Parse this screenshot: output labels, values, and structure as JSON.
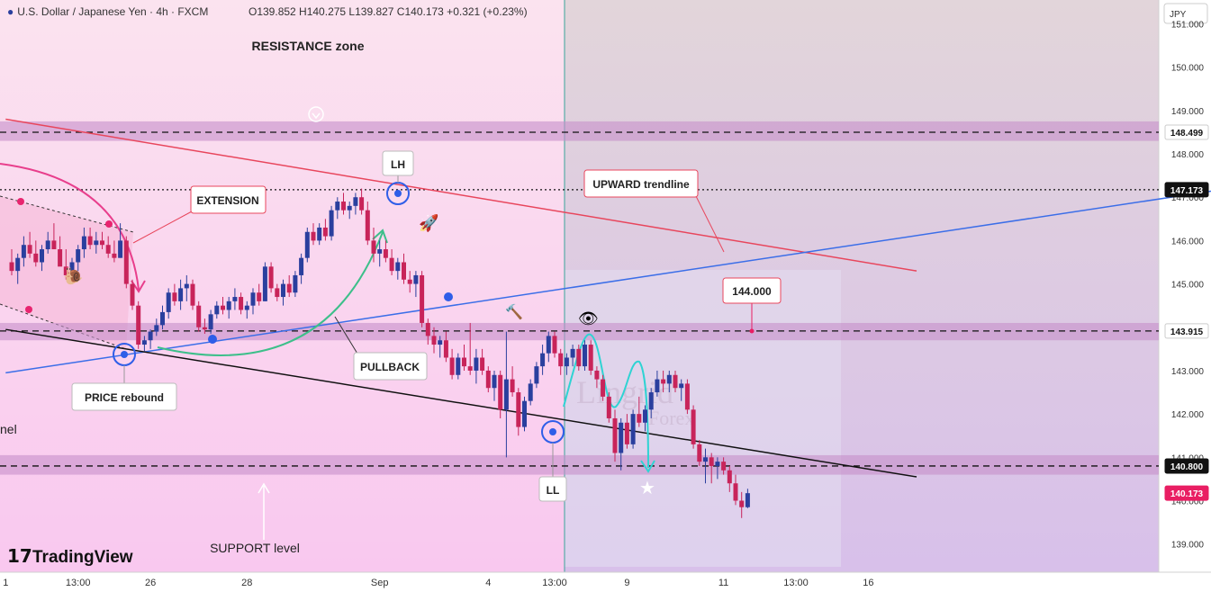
{
  "header": {
    "symbol": "U.S. Dollar / Japanese Yen · 4h · FXCM",
    "ohlc": "O139.852 H140.275 L139.827 C140.173 +0.321 (+0.23%)",
    "currency": "JPY"
  },
  "branding": {
    "logo_text": "TradingView",
    "watermark_big": "Lingrid",
    "watermark_small": "Forex"
  },
  "colors": {
    "bull": "#2a3f9e",
    "bear": "#c8245a",
    "resistance_line": "#e8465c",
    "upward_line": "#3b6ee8",
    "support_line": "#111111",
    "zone": "#c68fc9",
    "forecast_bg": "#d8c9e8",
    "current_price": "#e91e63"
  },
  "chart_data": {
    "type": "candlestick",
    "symbol": "USDJPY",
    "timeframe": "4h",
    "y_axis": {
      "range": [
        138.35,
        151.55
      ],
      "ticks": [
        "139.000",
        "140.000",
        "141.000",
        "142.000",
        "143.000",
        "144.000",
        "145.000",
        "146.000",
        "147.000",
        "148.000",
        "149.000",
        "150.000",
        "151.000"
      ],
      "price_labels": [
        {
          "label": "148.499",
          "value": 148.499,
          "style": "grey"
        },
        {
          "label": "147.173",
          "value": 147.173,
          "style": "dark"
        },
        {
          "label": "143.915",
          "value": 143.915,
          "style": "grey"
        },
        {
          "label": "140.800",
          "value": 140.8,
          "style": "dark"
        },
        {
          "label": "140.173",
          "value": 140.173,
          "style": "red"
        }
      ]
    },
    "x_axis": {
      "ticks": [
        {
          "label": "1",
          "bar": -1
        },
        {
          "label": "13:00",
          "bar": 11
        },
        {
          "label": "26",
          "bar": 23
        },
        {
          "label": "28",
          "bar": 39
        },
        {
          "label": "Sep",
          "bar": 61
        },
        {
          "label": "4",
          "bar": 79
        },
        {
          "label": "13:00",
          "bar": 90
        },
        {
          "label": "9",
          "bar": 102
        },
        {
          "label": "11",
          "bar": 118
        },
        {
          "label": "13:00",
          "bar": 130
        },
        {
          "label": "16",
          "bar": 142
        }
      ]
    },
    "levels": [
      {
        "value": 148.499,
        "style": "dashed"
      },
      {
        "value": 147.173,
        "style": "dotted"
      },
      {
        "value": 143.915,
        "style": "dashed"
      },
      {
        "value": 140.8,
        "style": "dashed"
      }
    ],
    "zones": [
      {
        "from": 148.3,
        "to": 148.75
      },
      {
        "from": 143.7,
        "to": 144.1
      },
      {
        "from": 140.6,
        "to": 141.05
      }
    ],
    "trendlines": [
      {
        "name": "resistance",
        "from": {
          "bar": -1,
          "price": 148.8
        },
        "to": {
          "bar": 150,
          "price": 145.3
        }
      },
      {
        "name": "upward",
        "from": {
          "bar": -1,
          "price": 142.95
        },
        "to": {
          "bar": 216,
          "price": 147.5
        }
      },
      {
        "name": "support",
        "from": {
          "bar": -1,
          "price": 143.95
        },
        "to": {
          "bar": 150,
          "price": 140.55
        }
      }
    ],
    "candles": [
      [
        145.5,
        145.8,
        145.2,
        145.3
      ],
      [
        145.3,
        145.7,
        145.0,
        145.6
      ],
      [
        145.6,
        146.1,
        145.4,
        145.9
      ],
      [
        145.9,
        146.2,
        145.6,
        145.7
      ],
      [
        145.7,
        146.0,
        145.4,
        145.5
      ],
      [
        145.5,
        145.9,
        145.3,
        145.8
      ],
      [
        145.8,
        146.2,
        145.7,
        146.0
      ],
      [
        146.0,
        146.4,
        145.9,
        145.8
      ],
      [
        145.8,
        146.1,
        145.5,
        145.4
      ],
      [
        145.4,
        145.8,
        145.1,
        145.2
      ],
      [
        145.2,
        145.6,
        145.0,
        145.5
      ],
      [
        145.5,
        145.9,
        145.3,
        145.8
      ],
      [
        145.8,
        146.3,
        145.6,
        146.1
      ],
      [
        146.1,
        146.3,
        145.8,
        145.9
      ],
      [
        145.9,
        146.2,
        145.7,
        146.0
      ],
      [
        146.0,
        146.2,
        145.8,
        145.9
      ],
      [
        145.9,
        146.1,
        145.6,
        145.7
      ],
      [
        145.7,
        146.0,
        145.5,
        145.6
      ],
      [
        145.6,
        146.4,
        145.6,
        146.0
      ],
      [
        146.0,
        146.1,
        144.9,
        145.0
      ],
      [
        145.0,
        145.1,
        144.4,
        144.5
      ],
      [
        144.5,
        144.6,
        143.5,
        143.6
      ],
      [
        143.6,
        143.8,
        143.45,
        143.7
      ],
      [
        143.7,
        143.95,
        143.5,
        143.9
      ],
      [
        143.9,
        144.2,
        143.8,
        144.05
      ],
      [
        144.05,
        144.5,
        143.95,
        144.35
      ],
      [
        144.35,
        144.9,
        144.2,
        144.8
      ],
      [
        144.8,
        145.0,
        144.5,
        144.6
      ],
      [
        144.6,
        145.1,
        144.4,
        144.9
      ],
      [
        144.9,
        145.2,
        144.6,
        145.0
      ],
      [
        145.0,
        145.1,
        144.4,
        144.5
      ],
      [
        144.5,
        144.6,
        143.9,
        144.0
      ],
      [
        144.0,
        144.2,
        143.85,
        143.95
      ],
      [
        143.95,
        144.4,
        143.85,
        144.3
      ],
      [
        144.3,
        144.6,
        144.2,
        144.5
      ],
      [
        144.5,
        144.7,
        144.3,
        144.4
      ],
      [
        144.4,
        144.7,
        144.2,
        144.6
      ],
      [
        144.6,
        144.9,
        144.4,
        144.7
      ],
      [
        144.7,
        144.8,
        144.3,
        144.4
      ],
      [
        144.4,
        144.6,
        144.2,
        144.5
      ],
      [
        144.5,
        144.9,
        144.3,
        144.8
      ],
      [
        144.8,
        145.0,
        144.5,
        144.6
      ],
      [
        144.6,
        145.5,
        144.6,
        145.4
      ],
      [
        145.4,
        145.5,
        144.8,
        144.9
      ],
      [
        144.9,
        145.0,
        144.6,
        144.7
      ],
      [
        144.7,
        145.1,
        144.5,
        145.0
      ],
      [
        145.0,
        145.2,
        144.7,
        144.8
      ],
      [
        144.8,
        145.3,
        144.7,
        145.2
      ],
      [
        145.2,
        145.7,
        145.0,
        145.6
      ],
      [
        145.6,
        146.3,
        145.5,
        146.2
      ],
      [
        146.2,
        146.4,
        145.9,
        146.0
      ],
      [
        146.0,
        146.4,
        145.9,
        146.3
      ],
      [
        146.3,
        146.5,
        146.0,
        146.1
      ],
      [
        146.1,
        146.8,
        146.0,
        146.7
      ],
      [
        146.7,
        147.0,
        146.5,
        146.9
      ],
      [
        146.9,
        147.1,
        146.6,
        146.7
      ],
      [
        146.7,
        146.9,
        146.5,
        146.8
      ],
      [
        146.8,
        147.1,
        146.6,
        147.0
      ],
      [
        147.0,
        147.2,
        146.6,
        146.7
      ],
      [
        146.7,
        146.9,
        145.9,
        146.0
      ],
      [
        146.0,
        146.3,
        145.5,
        145.7
      ],
      [
        145.7,
        146.0,
        145.4,
        145.8
      ],
      [
        145.8,
        146.0,
        145.5,
        145.6
      ],
      [
        145.6,
        145.8,
        145.2,
        145.3
      ],
      [
        145.3,
        145.6,
        145.1,
        145.5
      ],
      [
        145.5,
        145.7,
        145.0,
        145.1
      ],
      [
        145.1,
        145.3,
        144.8,
        145.0
      ],
      [
        145.0,
        145.3,
        144.7,
        145.2
      ],
      [
        145.2,
        145.3,
        144.0,
        144.1
      ],
      [
        144.1,
        144.2,
        143.6,
        143.8
      ],
      [
        143.8,
        144.0,
        143.4,
        143.6
      ],
      [
        143.6,
        143.8,
        143.3,
        143.7
      ],
      [
        143.7,
        143.9,
        143.2,
        143.3
      ],
      [
        143.3,
        143.5,
        142.8,
        142.9
      ],
      [
        142.9,
        143.4,
        142.8,
        143.3
      ],
      [
        143.3,
        143.6,
        143.0,
        143.1
      ],
      [
        143.1,
        144.1,
        142.9,
        143.0
      ],
      [
        143.0,
        143.5,
        142.7,
        143.3
      ],
      [
        143.3,
        143.5,
        142.9,
        143.0
      ],
      [
        143.0,
        143.1,
        142.5,
        142.6
      ],
      [
        142.6,
        143.0,
        142.3,
        142.9
      ],
      [
        142.9,
        143.0,
        141.9,
        142.1
      ],
      [
        142.1,
        143.9,
        141.0,
        142.8
      ],
      [
        142.8,
        143.1,
        142.4,
        142.5
      ],
      [
        142.5,
        142.6,
        141.5,
        141.7
      ],
      [
        141.7,
        142.4,
        141.6,
        142.3
      ],
      [
        142.3,
        142.8,
        142.2,
        142.7
      ],
      [
        142.7,
        143.2,
        142.6,
        143.1
      ],
      [
        143.1,
        143.6,
        142.9,
        143.4
      ],
      [
        143.4,
        143.9,
        143.2,
        143.8
      ],
      [
        143.8,
        143.9,
        143.3,
        143.4
      ],
      [
        143.4,
        143.5,
        142.9,
        143.1
      ],
      [
        143.1,
        143.4,
        142.9,
        143.3
      ],
      [
        143.3,
        143.6,
        143.1,
        143.5
      ],
      [
        143.5,
        143.6,
        143.0,
        143.1
      ],
      [
        143.1,
        143.7,
        143.0,
        143.6
      ],
      [
        143.6,
        143.7,
        142.9,
        143.0
      ],
      [
        143.0,
        143.1,
        142.6,
        142.8
      ],
      [
        142.8,
        142.9,
        142.3,
        142.4
      ],
      [
        142.4,
        142.5,
        141.8,
        141.9
      ],
      [
        141.9,
        142.1,
        140.9,
        141.1
      ],
      [
        141.1,
        141.9,
        140.7,
        141.8
      ],
      [
        141.8,
        142.0,
        141.2,
        141.3
      ],
      [
        141.3,
        142.1,
        141.2,
        142.0
      ],
      [
        142.0,
        142.4,
        141.7,
        141.8
      ],
      [
        141.8,
        142.2,
        141.6,
        142.1
      ],
      [
        142.1,
        142.6,
        141.9,
        142.5
      ],
      [
        142.5,
        143.0,
        142.4,
        142.8
      ],
      [
        142.8,
        143.0,
        142.5,
        142.7
      ],
      [
        142.7,
        143.0,
        142.5,
        142.9
      ],
      [
        142.9,
        143.0,
        142.5,
        142.6
      ],
      [
        142.6,
        142.8,
        142.3,
        142.7
      ],
      [
        142.7,
        142.8,
        142.0,
        142.1
      ],
      [
        142.1,
        142.2,
        141.2,
        141.3
      ],
      [
        141.3,
        141.4,
        140.8,
        140.9
      ],
      [
        140.9,
        141.2,
        140.4,
        141.0
      ],
      [
        141.0,
        141.1,
        140.4,
        140.8
      ],
      [
        140.8,
        141.0,
        140.5,
        140.9
      ],
      [
        140.9,
        141.0,
        140.6,
        140.7
      ],
      [
        140.7,
        140.8,
        140.2,
        140.4
      ],
      [
        140.4,
        140.6,
        139.9,
        140.0
      ],
      [
        140.0,
        140.2,
        139.6,
        139.85
      ],
      [
        139.85,
        140.275,
        139.827,
        140.173
      ]
    ]
  },
  "annotations": {
    "resistance_zone": "RESISTANCE zone",
    "support_level": "SUPPORT level",
    "extension": "EXTENSION",
    "pullback": "PULLBACK",
    "price_rebound": "PRICE rebound",
    "upward_trendline": "UPWARD trendline",
    "target": "144.000",
    "lh": "LH",
    "ll": "LL",
    "channel_cut": "nel"
  }
}
